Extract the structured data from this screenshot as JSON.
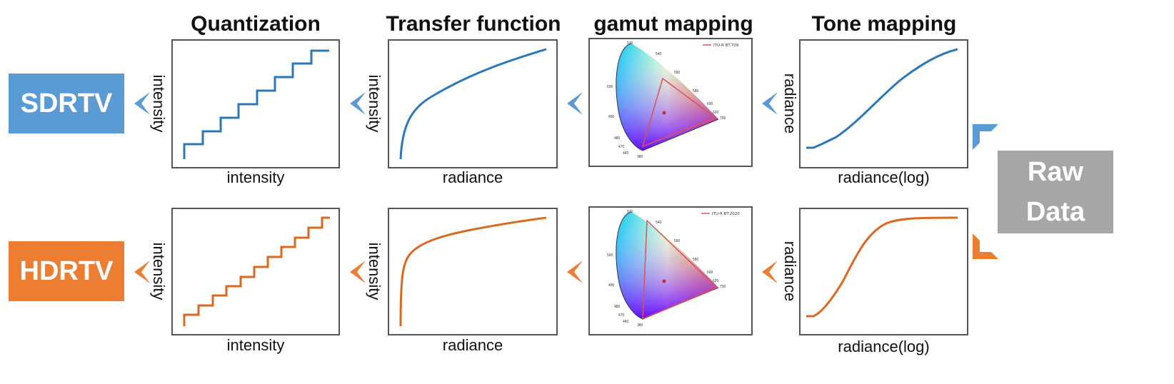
{
  "stages": {
    "quantization": "Quantization",
    "transfer": "Transfer function",
    "gamut": "gamut mapping",
    "tone": "Tone mapping"
  },
  "outputs": {
    "sdr": "SDRTV",
    "hdr": "HDRTV"
  },
  "input": {
    "line1": "Raw",
    "line2": "Data"
  },
  "axes": {
    "intensity": "intensity",
    "radiance": "radiance",
    "radiance_log": "radiance(log)"
  },
  "gamut_legend": {
    "sdr": "ITU-R BT.709",
    "hdr": "ITU-R BT.2020"
  },
  "locus_ticks": [
    "520",
    "540",
    "560",
    "580",
    "600",
    "620",
    "700",
    "500",
    "490",
    "480",
    "470",
    "460",
    "380"
  ],
  "colors": {
    "sdr": "#2b78b8",
    "hdr": "#d9691e",
    "sdr_box": "#5b9bd5",
    "hdr_box": "#ed7d31",
    "raw_box": "#a6a6a6",
    "sdr_arrow": "#5b9bd5",
    "hdr_arrow": "#ed7d31"
  },
  "icons": {
    "flow_arrow": "chevron-left-icon",
    "corner_arrow": "corner-arrow-icon"
  }
}
